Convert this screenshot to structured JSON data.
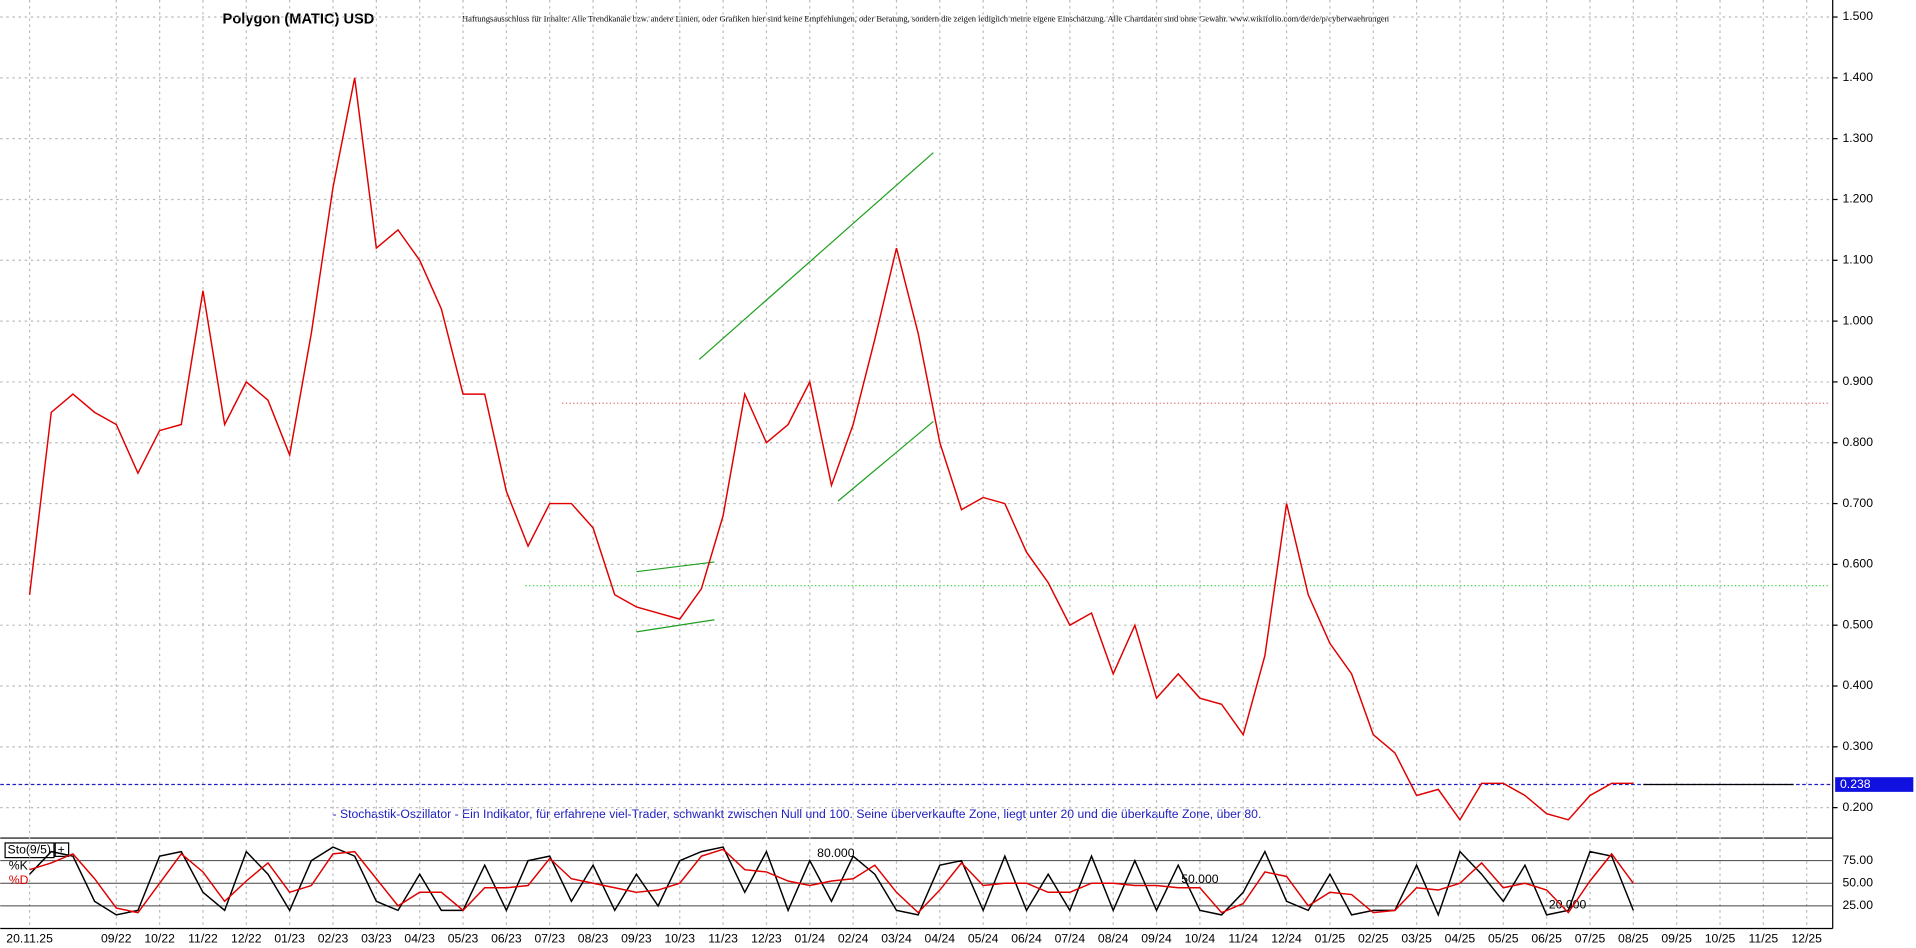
{
  "chart_data": [
    {
      "type": "line",
      "title": "Polygon (MATIC) USD",
      "disclaimer": "Haftungsausschluss für Inhalte: Alle Trendkanäle bzw. andere Linien, oder Grafiken hier sind keine Empfehlungen, oder Beratung, sondern die zeigen lediglich meine eigene Einschätzung. Alle Chartdaten sind ohne Gewähr. www.wikifolio.com/de/de/p/cyberwaehrungen",
      "annotation": "- Stochastik-Oszillator - Ein Indikator, für erfahrene viel-Trader, schwankt zwischen Null und 100. Seine überverkaufte Zone, liegt unter 20 und die überkaufte Zone, über 80.",
      "series": [
        {
          "name": "MATIC",
          "color": "#e00000",
          "values": [
            0.55,
            0.85,
            0.88,
            0.85,
            0.83,
            0.75,
            0.82,
            0.83,
            1.05,
            0.83,
            0.9,
            0.87,
            0.78,
            0.98,
            1.22,
            1.4,
            1.12,
            1.15,
            1.1,
            1.02,
            0.88,
            0.88,
            0.72,
            0.63,
            0.7,
            0.7,
            0.66,
            0.55,
            0.53,
            0.52,
            0.51,
            0.56,
            0.68,
            0.88,
            0.8,
            0.83,
            0.9,
            0.73,
            0.83,
            0.97,
            1.12,
            0.98,
            0.8,
            0.69,
            0.71,
            0.7,
            0.62,
            0.57,
            0.5,
            0.52,
            0.42,
            0.5,
            0.38,
            0.42,
            0.38,
            0.37,
            0.32,
            0.45,
            0.7,
            0.55,
            0.47,
            0.42,
            0.32,
            0.29,
            0.22,
            0.23,
            0.18,
            0.24,
            0.24,
            0.22,
            0.19,
            0.18,
            0.22,
            0.24,
            0.24,
            null,
            null,
            null,
            null,
            null,
            null,
            null,
            null
          ]
        }
      ],
      "last_price": 0.238,
      "ref_lines": [
        {
          "value": 0.865,
          "color": "#e07070"
        },
        {
          "value": 0.565,
          "color": "#40d040"
        }
      ],
      "trend_lines": [
        [
          [
            30.9,
            0.937
          ],
          [
            41.7,
            1.277
          ]
        ],
        [
          [
            37.3,
            0.704
          ],
          [
            41.7,
            0.835
          ]
        ],
        [
          [
            28.0,
            0.588
          ],
          [
            31.6,
            0.604
          ]
        ],
        [
          [
            28.0,
            0.489
          ],
          [
            31.6,
            0.509
          ]
        ]
      ],
      "trend_color": "#20a020",
      "ylim": [
        0.15,
        1.528
      ],
      "yticks": [
        {
          "value": 0.2,
          "label": "0.200"
        },
        {
          "value": 0.3,
          "label": "0.300"
        },
        {
          "value": 0.4,
          "label": "0.400"
        },
        {
          "value": 0.5,
          "label": "0.500"
        },
        {
          "value": 0.6,
          "label": "0.600"
        },
        {
          "value": 0.7,
          "label": "0.700"
        },
        {
          "value": 0.8,
          "label": "0.800"
        },
        {
          "value": 0.9,
          "label": "0.900"
        },
        {
          "value": 1.0,
          "label": "1.000"
        },
        {
          "value": 1.1,
          "label": "1.100"
        },
        {
          "value": 1.2,
          "label": "1.200"
        },
        {
          "value": 1.3,
          "label": "1.300"
        },
        {
          "value": 1.4,
          "label": "1.400"
        },
        {
          "value": 1.5,
          "label": "1.500"
        }
      ],
      "grid": true
    },
    {
      "type": "line",
      "title": "Sto(9/5)",
      "categories": [
        "20.11.25",
        null,
        null,
        null,
        "09/22",
        null,
        "10/22",
        null,
        "11/22",
        null,
        "12/22",
        null,
        "01/23",
        null,
        "02/23",
        null,
        "03/23",
        null,
        "04/23",
        null,
        "05/23",
        null,
        "06/23",
        null,
        "07/23",
        null,
        "08/23",
        null,
        "09/23",
        null,
        "10/23",
        null,
        "11/23",
        null,
        "12/23",
        null,
        "01/24",
        null,
        "02/24",
        null,
        "03/24",
        null,
        "04/24",
        null,
        "05/24",
        null,
        "06/24",
        null,
        "07/24",
        null,
        "08/24",
        null,
        "09/24",
        null,
        "10/24",
        null,
        "11/24",
        null,
        "12/24",
        null,
        "01/25",
        null,
        "02/25",
        null,
        "03/25",
        null,
        "04/25",
        null,
        "05/25",
        null,
        "06/25",
        null,
        "07/25",
        null,
        "08/25",
        null,
        "09/25",
        null,
        "10/25",
        null,
        "11/25",
        null,
        "12/25"
      ],
      "series": [
        {
          "name": "%K",
          "color": "#000000",
          "values": [
            60,
            85,
            80,
            30,
            15,
            20,
            80,
            85,
            40,
            20,
            85,
            60,
            20,
            75,
            90,
            80,
            30,
            20,
            60,
            20,
            20,
            70,
            20,
            75,
            80,
            30,
            70,
            20,
            60,
            25,
            75,
            85,
            90,
            40,
            85,
            20,
            75,
            30,
            80,
            60,
            20,
            15,
            70,
            75,
            20,
            80,
            20,
            60,
            20,
            80,
            20,
            75,
            20,
            70,
            20,
            15,
            40,
            85,
            30,
            20,
            60,
            15,
            20,
            20,
            70,
            15,
            85,
            60,
            30,
            70,
            15,
            20,
            85,
            80,
            20,
            null,
            null,
            null,
            null,
            null,
            null,
            null,
            null
          ]
        },
        {
          "name": "%D",
          "color": "#e00000",
          "values": [
            65,
            72.5,
            82.5,
            55,
            22.5,
            17.5,
            50,
            82.5,
            62.5,
            30,
            52.5,
            72.5,
            40,
            47.5,
            82.5,
            85,
            55,
            25,
            40,
            40,
            20,
            45,
            45,
            47.5,
            77.5,
            55,
            50,
            45,
            40,
            42.5,
            50,
            80,
            87.5,
            65,
            62.5,
            52.5,
            47.5,
            52.5,
            55,
            70,
            40,
            17.5,
            42.5,
            72.5,
            47.5,
            50,
            50,
            40,
            40,
            50,
            50,
            47.5,
            47.5,
            45,
            45,
            17.5,
            27.5,
            62.5,
            57.5,
            25,
            40,
            37.5,
            17.5,
            20,
            45,
            42.5,
            50,
            72.5,
            45,
            50,
            42.5,
            17.5,
            52.5,
            82.5,
            50,
            null,
            null,
            null,
            null,
            null,
            null,
            null,
            null
          ]
        }
      ],
      "levels": [
        "80.000",
        "50.000",
        "20.000"
      ],
      "ylim": [
        0,
        100
      ],
      "yticks": [
        {
          "value": 25,
          "label": "25.00"
        },
        {
          "value": 50,
          "label": "50.00"
        },
        {
          "value": 75,
          "label": "75.00"
        }
      ]
    }
  ]
}
